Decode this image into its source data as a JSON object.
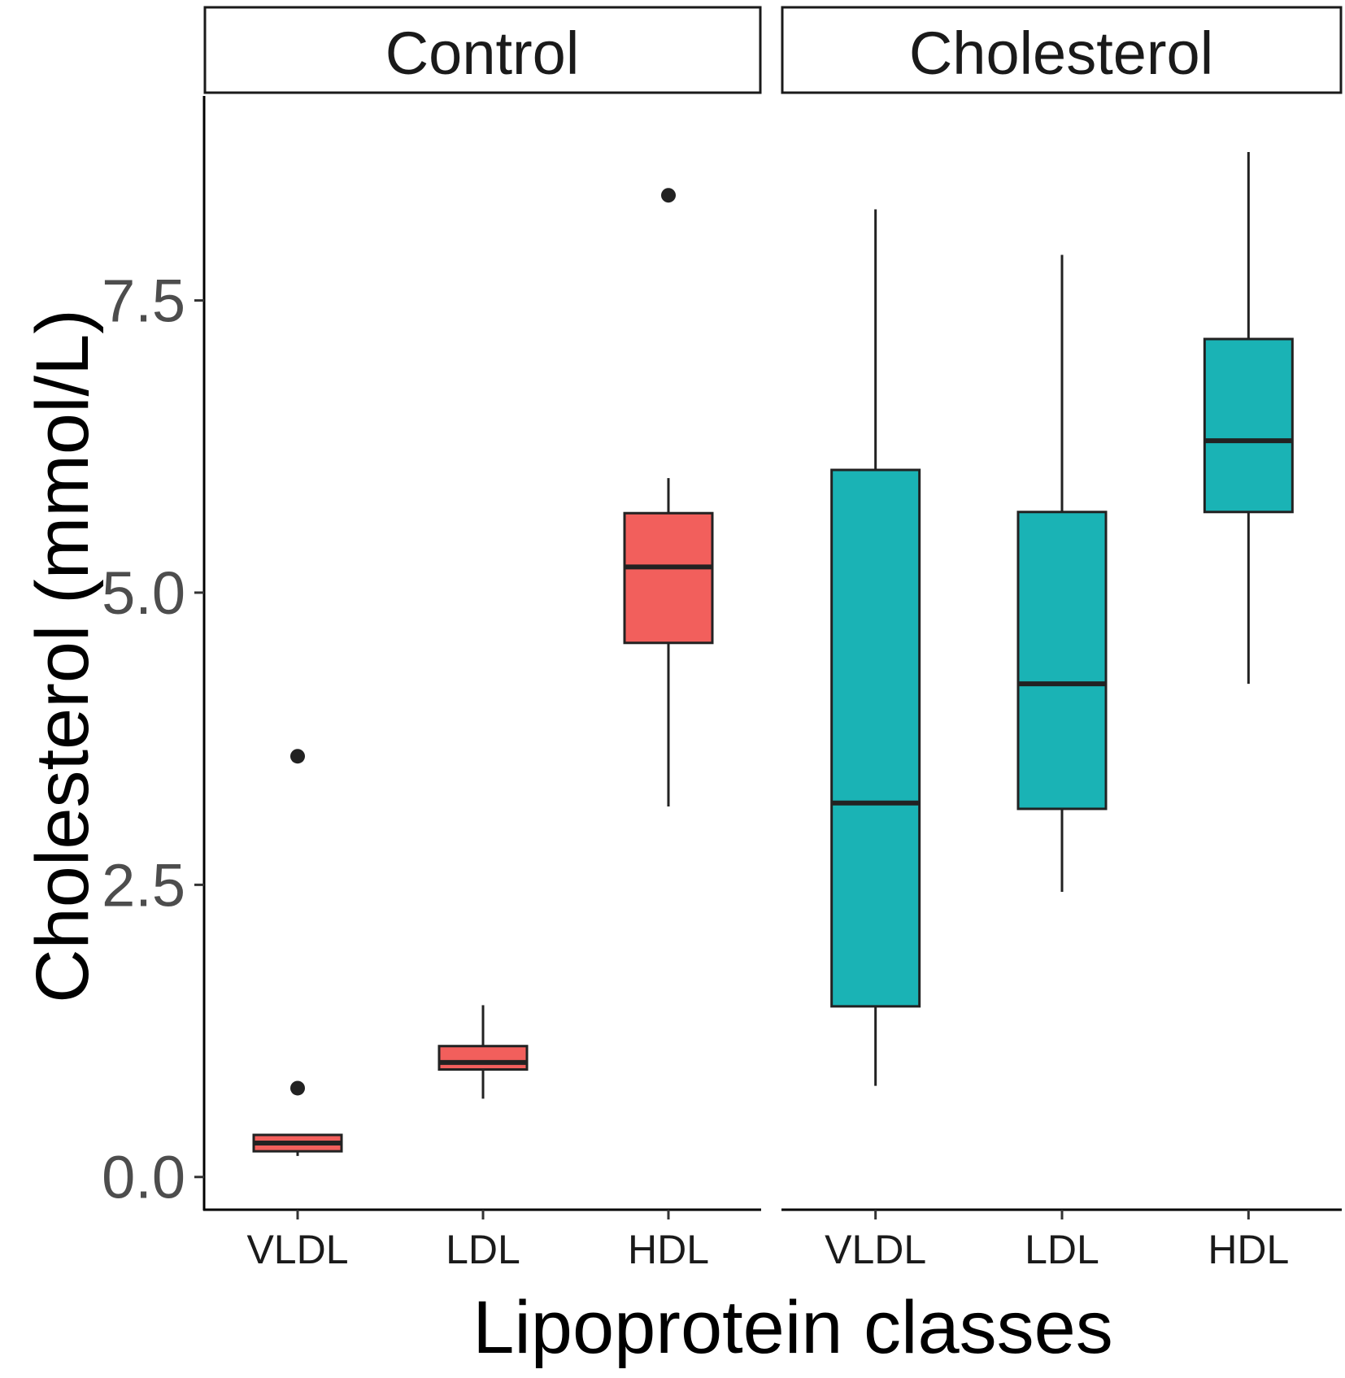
{
  "chart_data": {
    "type": "boxplot",
    "xlabel": "Lipoprotein classes",
    "ylabel": "Cholesterol (mmol/L)",
    "ylim": [
      -0.28,
      9.25
    ],
    "yticks": [
      "0.0",
      "2.5",
      "5.0",
      "7.5"
    ],
    "ytick_values": [
      0,
      2.5,
      5.0,
      7.5
    ],
    "grid": false,
    "categories": [
      "VLDL",
      "LDL",
      "HDL"
    ],
    "colors": {
      "Control": "#F25F5C",
      "Cholesterol": "#1AB3B5",
      "outline": "#222222"
    },
    "facets": [
      {
        "label": "Control",
        "boxes": [
          {
            "category": "VLDL",
            "whisker_low": 0.18,
            "q1": 0.22,
            "median": 0.29,
            "q3": 0.36,
            "whisker_high": 0.36,
            "outliers": [
              0.76,
              3.6
            ]
          },
          {
            "category": "LDL",
            "whisker_low": 0.67,
            "q1": 0.92,
            "median": 0.98,
            "q3": 1.12,
            "whisker_high": 1.47,
            "outliers": []
          },
          {
            "category": "HDL",
            "whisker_low": 3.17,
            "q1": 4.57,
            "median": 5.22,
            "q3": 5.68,
            "whisker_high": 5.98,
            "outliers": [
              8.4
            ]
          }
        ]
      },
      {
        "label": "Cholesterol",
        "boxes": [
          {
            "category": "VLDL",
            "whisker_low": 0.78,
            "q1": 1.46,
            "median": 3.2,
            "q3": 6.05,
            "whisker_high": 8.28,
            "outliers": []
          },
          {
            "category": "LDL",
            "whisker_low": 2.44,
            "q1": 3.15,
            "median": 4.22,
            "q3": 5.69,
            "whisker_high": 7.89,
            "outliers": []
          },
          {
            "category": "HDL",
            "whisker_low": 4.22,
            "q1": 5.69,
            "median": 6.3,
            "q3": 7.17,
            "whisker_high": 8.77,
            "outliers": []
          }
        ]
      }
    ]
  }
}
